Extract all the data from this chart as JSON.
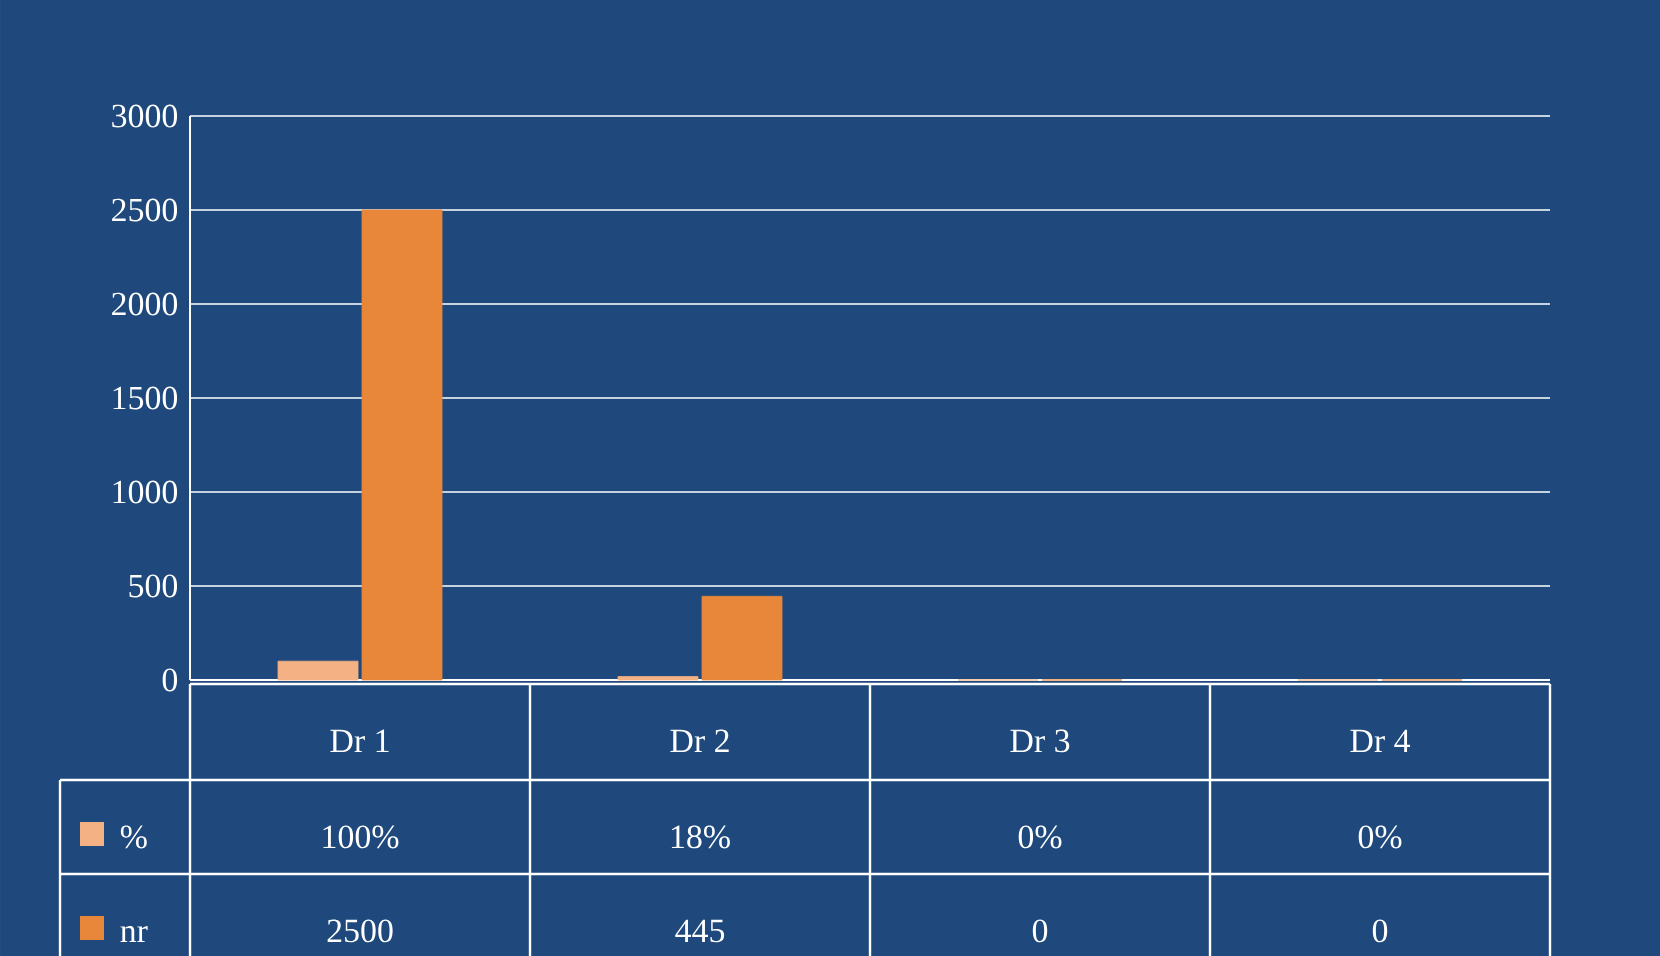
{
  "chart_data": {
    "type": "bar",
    "categories": [
      "Dr 1",
      "Dr 2",
      "Dr 3",
      "Dr 4"
    ],
    "series": [
      {
        "name": "%",
        "color": "#f4b183",
        "values": [
          100,
          18,
          0,
          0
        ],
        "value_labels": [
          "100%",
          "18%",
          "0%",
          "0%"
        ]
      },
      {
        "name": "nr",
        "color": "#e8863a",
        "values": [
          2500,
          445,
          0,
          0
        ],
        "value_labels": [
          "2500",
          "445",
          "0",
          "0"
        ]
      }
    ],
    "ylim": [
      0,
      3000
    ],
    "yticks": [
      0,
      500,
      1000,
      1500,
      2000,
      2500,
      3000
    ],
    "grid": "y",
    "legend": "bottom left"
  }
}
